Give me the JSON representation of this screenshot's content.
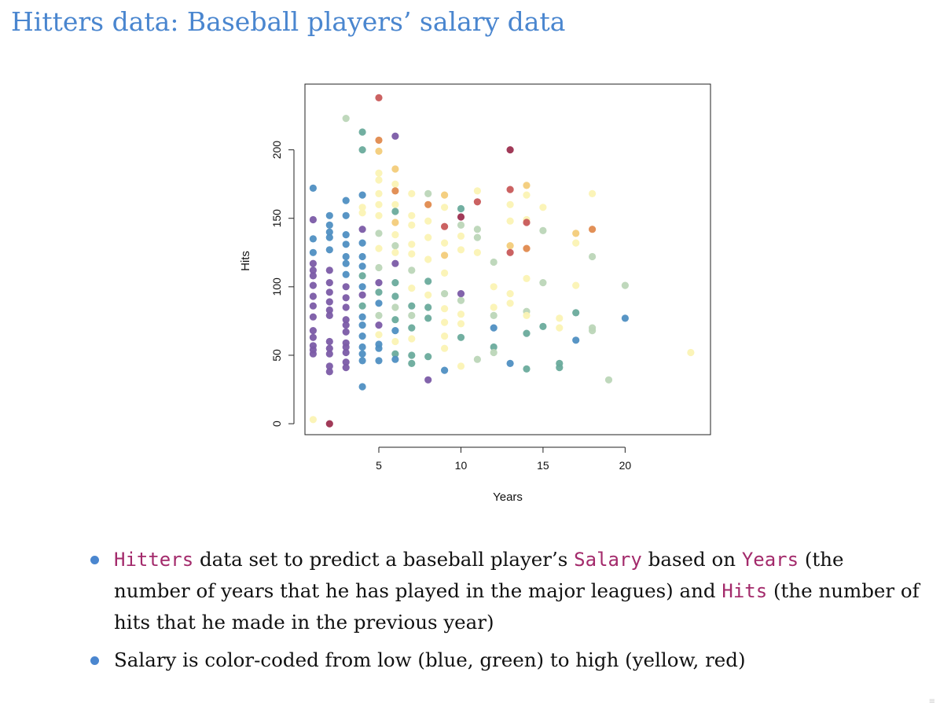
{
  "title": "Hitters data: Baseball players’ salary data",
  "colors": {
    "title": "#4a86cf",
    "bullet": "#4a86cf",
    "code": "#a32a6b",
    "salary_scale": [
      "#7b5ba6",
      "#4f8fc2",
      "#6aab9c",
      "#bcd6b8",
      "#fbf3b4",
      "#f3cc7a",
      "#e08a4e",
      "#c85a5a",
      "#9c2f4f"
    ]
  },
  "chart_data": {
    "type": "scatter",
    "title": "",
    "xlabel": "Years",
    "ylabel": "Hits",
    "xlim": [
      0.5,
      25.2
    ],
    "ylim": [
      -8,
      248
    ],
    "xticks": [
      5,
      10,
      15,
      20
    ],
    "yticks": [
      0,
      50,
      100,
      150,
      200
    ],
    "grid": false,
    "color_encodes": "Salary (0 = lowest, 8 = highest)",
    "points": [
      [
        1,
        172,
        1
      ],
      [
        1,
        149,
        0
      ],
      [
        1,
        135,
        1
      ],
      [
        1,
        125,
        1
      ],
      [
        1,
        117,
        0
      ],
      [
        1,
        112,
        0
      ],
      [
        1,
        108,
        0
      ],
      [
        1,
        101,
        0
      ],
      [
        1,
        93,
        0
      ],
      [
        1,
        86,
        0
      ],
      [
        1,
        78,
        0
      ],
      [
        1,
        68,
        0
      ],
      [
        1,
        63,
        0
      ],
      [
        1,
        57,
        0
      ],
      [
        1,
        54,
        0
      ],
      [
        1,
        51,
        0
      ],
      [
        1,
        3,
        4
      ],
      [
        2,
        152,
        1
      ],
      [
        2,
        145,
        1
      ],
      [
        2,
        140,
        1
      ],
      [
        2,
        136,
        1
      ],
      [
        2,
        127,
        1
      ],
      [
        2,
        112,
        0
      ],
      [
        2,
        103,
        0
      ],
      [
        2,
        96,
        0
      ],
      [
        2,
        89,
        0
      ],
      [
        2,
        83,
        0
      ],
      [
        2,
        79,
        0
      ],
      [
        2,
        60,
        0
      ],
      [
        2,
        55,
        0
      ],
      [
        2,
        51,
        0
      ],
      [
        2,
        42,
        0
      ],
      [
        2,
        38,
        0
      ],
      [
        2,
        0,
        8
      ],
      [
        3,
        223,
        3
      ],
      [
        3,
        163,
        1
      ],
      [
        3,
        152,
        1
      ],
      [
        3,
        138,
        1
      ],
      [
        3,
        131,
        1
      ],
      [
        3,
        122,
        1
      ],
      [
        3,
        117,
        1
      ],
      [
        3,
        109,
        1
      ],
      [
        3,
        100,
        0
      ],
      [
        3,
        92,
        0
      ],
      [
        3,
        85,
        0
      ],
      [
        3,
        76,
        0
      ],
      [
        3,
        72,
        0
      ],
      [
        3,
        67,
        0
      ],
      [
        3,
        59,
        0
      ],
      [
        3,
        56,
        0
      ],
      [
        3,
        52,
        0
      ],
      [
        3,
        45,
        0
      ],
      [
        3,
        41,
        0
      ],
      [
        4,
        213,
        2
      ],
      [
        4,
        200,
        2
      ],
      [
        4,
        167,
        1
      ],
      [
        4,
        158,
        4
      ],
      [
        4,
        154,
        4
      ],
      [
        4,
        142,
        0
      ],
      [
        4,
        132,
        1
      ],
      [
        4,
        122,
        1
      ],
      [
        4,
        115,
        1
      ],
      [
        4,
        108,
        2
      ],
      [
        4,
        100,
        1
      ],
      [
        4,
        94,
        0
      ],
      [
        4,
        86,
        2
      ],
      [
        4,
        78,
        1
      ],
      [
        4,
        72,
        1
      ],
      [
        4,
        64,
        1
      ],
      [
        4,
        56,
        1
      ],
      [
        4,
        51,
        1
      ],
      [
        4,
        46,
        1
      ],
      [
        4,
        27,
        1
      ],
      [
        5,
        238,
        7
      ],
      [
        5,
        207,
        6
      ],
      [
        5,
        199,
        5
      ],
      [
        5,
        183,
        4
      ],
      [
        5,
        178,
        4
      ],
      [
        5,
        168,
        4
      ],
      [
        5,
        160,
        4
      ],
      [
        5,
        152,
        4
      ],
      [
        5,
        139,
        3
      ],
      [
        5,
        128,
        4
      ],
      [
        5,
        114,
        3
      ],
      [
        5,
        103,
        0
      ],
      [
        5,
        96,
        2
      ],
      [
        5,
        88,
        1
      ],
      [
        5,
        79,
        3
      ],
      [
        5,
        72,
        0
      ],
      [
        5,
        65,
        4
      ],
      [
        5,
        58,
        1
      ],
      [
        5,
        55,
        1
      ],
      [
        5,
        46,
        1
      ],
      [
        6,
        210,
        0
      ],
      [
        6,
        186,
        5
      ],
      [
        6,
        175,
        4
      ],
      [
        6,
        170,
        6
      ],
      [
        6,
        160,
        4
      ],
      [
        6,
        155,
        2
      ],
      [
        6,
        147,
        5
      ],
      [
        6,
        138,
        4
      ],
      [
        6,
        130,
        3
      ],
      [
        6,
        125,
        4
      ],
      [
        6,
        117,
        0
      ],
      [
        6,
        103,
        2
      ],
      [
        6,
        93,
        2
      ],
      [
        6,
        85,
        3
      ],
      [
        6,
        76,
        2
      ],
      [
        6,
        68,
        1
      ],
      [
        6,
        60,
        4
      ],
      [
        6,
        51,
        2
      ],
      [
        6,
        47,
        1
      ],
      [
        7,
        168,
        4
      ],
      [
        7,
        152,
        4
      ],
      [
        7,
        145,
        4
      ],
      [
        7,
        131,
        4
      ],
      [
        7,
        124,
        4
      ],
      [
        7,
        112,
        3
      ],
      [
        7,
        99,
        4
      ],
      [
        7,
        86,
        2
      ],
      [
        7,
        79,
        3
      ],
      [
        7,
        70,
        2
      ],
      [
        7,
        62,
        4
      ],
      [
        7,
        50,
        2
      ],
      [
        7,
        44,
        2
      ],
      [
        8,
        168,
        3
      ],
      [
        8,
        160,
        6
      ],
      [
        8,
        148,
        4
      ],
      [
        8,
        136,
        4
      ],
      [
        8,
        120,
        4
      ],
      [
        8,
        104,
        2
      ],
      [
        8,
        94,
        4
      ],
      [
        8,
        85,
        2
      ],
      [
        8,
        77,
        2
      ],
      [
        8,
        49,
        2
      ],
      [
        8,
        32,
        0
      ],
      [
        9,
        167,
        5
      ],
      [
        9,
        158,
        4
      ],
      [
        9,
        144,
        7
      ],
      [
        9,
        132,
        4
      ],
      [
        9,
        123,
        5
      ],
      [
        9,
        110,
        4
      ],
      [
        9,
        95,
        3
      ],
      [
        9,
        84,
        4
      ],
      [
        9,
        74,
        4
      ],
      [
        9,
        64,
        4
      ],
      [
        9,
        55,
        4
      ],
      [
        9,
        39,
        1
      ],
      [
        10,
        157,
        2
      ],
      [
        10,
        151,
        8
      ],
      [
        10,
        145,
        3
      ],
      [
        10,
        137,
        4
      ],
      [
        10,
        127,
        4
      ],
      [
        10,
        95,
        0
      ],
      [
        10,
        90,
        3
      ],
      [
        10,
        80,
        4
      ],
      [
        10,
        73,
        4
      ],
      [
        10,
        63,
        2
      ],
      [
        10,
        42,
        4
      ],
      [
        11,
        170,
        4
      ],
      [
        11,
        162,
        7
      ],
      [
        11,
        142,
        3
      ],
      [
        11,
        136,
        3
      ],
      [
        11,
        125,
        4
      ],
      [
        11,
        47,
        3
      ],
      [
        12,
        118,
        3
      ],
      [
        12,
        100,
        4
      ],
      [
        12,
        85,
        4
      ],
      [
        12,
        79,
        3
      ],
      [
        12,
        70,
        1
      ],
      [
        12,
        56,
        2
      ],
      [
        12,
        52,
        3
      ],
      [
        13,
        200,
        8
      ],
      [
        13,
        171,
        7
      ],
      [
        13,
        160,
        4
      ],
      [
        13,
        148,
        4
      ],
      [
        13,
        130,
        5
      ],
      [
        13,
        125,
        7
      ],
      [
        13,
        95,
        4
      ],
      [
        13,
        88,
        4
      ],
      [
        13,
        44,
        1
      ],
      [
        14,
        174,
        5
      ],
      [
        14,
        167,
        4
      ],
      [
        14,
        149,
        4
      ],
      [
        14,
        147,
        7
      ],
      [
        14,
        128,
        6
      ],
      [
        14,
        106,
        4
      ],
      [
        14,
        82,
        3
      ],
      [
        14,
        79,
        4
      ],
      [
        14,
        66,
        2
      ],
      [
        14,
        40,
        2
      ],
      [
        15,
        158,
        4
      ],
      [
        15,
        141,
        3
      ],
      [
        15,
        103,
        3
      ],
      [
        15,
        71,
        2
      ],
      [
        16,
        77,
        4
      ],
      [
        16,
        70,
        4
      ],
      [
        16,
        44,
        2
      ],
      [
        16,
        41,
        2
      ],
      [
        17,
        139,
        5
      ],
      [
        17,
        132,
        4
      ],
      [
        17,
        101,
        4
      ],
      [
        17,
        81,
        2
      ],
      [
        17,
        61,
        1
      ],
      [
        18,
        168,
        4
      ],
      [
        18,
        142,
        6
      ],
      [
        18,
        122,
        3
      ],
      [
        18,
        70,
        3
      ],
      [
        18,
        68,
        3
      ],
      [
        19,
        32,
        3
      ],
      [
        20,
        101,
        3
      ],
      [
        20,
        77,
        1
      ],
      [
        24,
        52,
        4
      ]
    ]
  },
  "bullets": [
    {
      "code1": "Hitters",
      "text1": " data set to predict a baseball player’s ",
      "code2": "Salary",
      "text2": " based on ",
      "code3": "Years",
      "text3": " (the number of years that he has played in the major leagues) and ",
      "code4": "Hits",
      "text4": " (the number of hits that he made in the previous year)"
    },
    {
      "text1": "Salary is color-coded from low (blue, green) to high (yellow, red)"
    }
  ]
}
